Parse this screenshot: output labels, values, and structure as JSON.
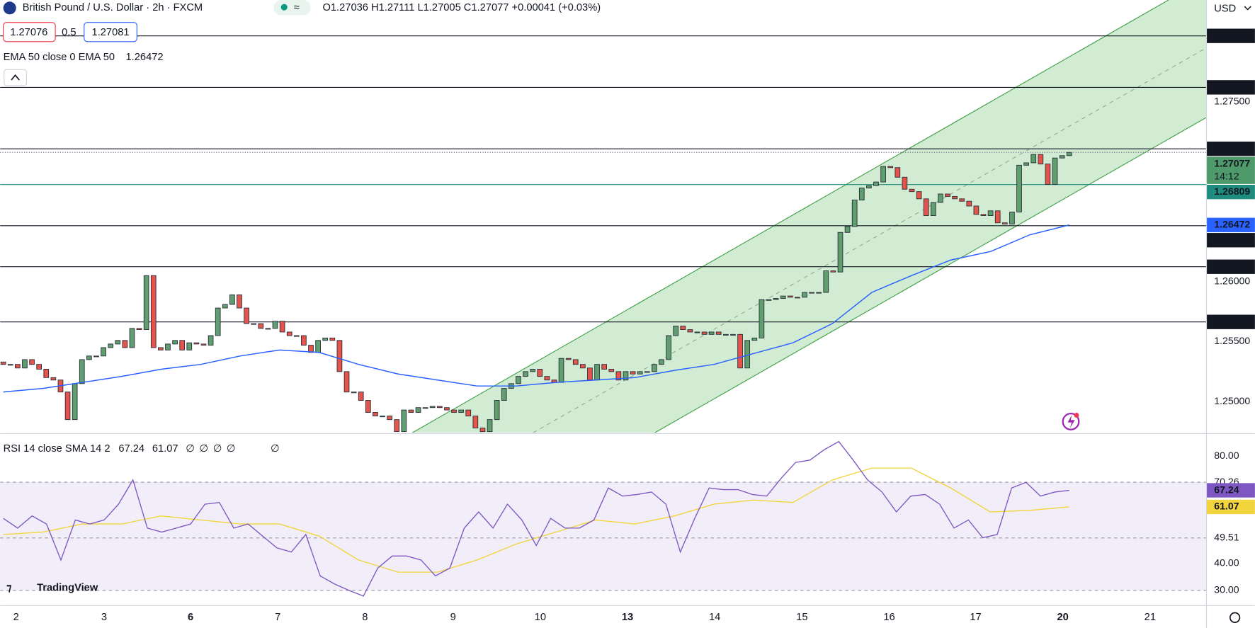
{
  "header": {
    "symbol": "British Pound / U.S. Dollar · 2h · FXCM",
    "ohlc": "O1.27036 H1.27111 L1.27005 C1.27077 +0.00041 (+0.03%)",
    "bid": "1.27076",
    "spread": "0.5",
    "ask": "1.27081",
    "currency": "USD",
    "logo": "TradingView"
  },
  "chart_data": {
    "type": "candlestick",
    "up_color": "#5f9e6f",
    "down_color": "#e5544b",
    "ylim": [
      1.2474,
      1.28347
    ],
    "yticks": [
      {
        "value": 1.25,
        "label": "1.25000"
      },
      {
        "value": 1.255,
        "label": "1.25500"
      },
      {
        "value": 1.26,
        "label": "1.26000"
      },
      {
        "value": 1.275,
        "label": "1.27500"
      }
    ],
    "open": 1.2533,
    "closes": [
      1.2531,
      1.2531,
      1.2528,
      1.2535,
      1.2531,
      1.2527,
      1.252,
      1.2518,
      1.2508,
      1.2485,
      1.2515,
      1.2535,
      1.2538,
      1.2538,
      1.2545,
      1.2548,
      1.2551,
      1.2545,
      1.2561,
      1.256,
      1.2605,
      1.2545,
      1.2543,
      1.2548,
      1.2551,
      1.2543,
      1.2549,
      1.2548,
      1.2547,
      1.2555,
      1.2578,
      1.2581,
      1.2589,
      1.2578,
      1.2565,
      1.2565,
      1.2561,
      1.2561,
      1.2567,
      1.2558,
      1.2555,
      1.2555,
      1.2547,
      1.2541,
      1.2551,
      1.2553,
      1.2551,
      1.2525,
      1.2508,
      1.2508,
      1.2501,
      1.2491,
      1.2488,
      1.2488,
      1.2485,
      1.2475,
      1.2493,
      1.2491,
      1.2495,
      1.2495,
      1.2496,
      1.2495,
      1.2493,
      1.2491,
      1.2493,
      1.2488,
      1.2478,
      1.2475,
      1.2485,
      1.2501,
      1.2511,
      1.2515,
      1.2521,
      1.2525,
      1.2527,
      1.2521,
      1.2518,
      1.2516,
      1.2536,
      1.2535,
      1.2531,
      1.2528,
      1.2518,
      1.2531,
      1.2527,
      1.2525,
      1.2518,
      1.2525,
      1.2523,
      1.2525,
      1.2525,
      1.2531,
      1.2535,
      1.2555,
      1.2563,
      1.256,
      1.2558,
      1.2558,
      1.2556,
      1.2558,
      1.2556,
      1.2556,
      1.2556,
      1.2528,
      1.2551,
      1.2553,
      1.2585,
      1.2585,
      1.2586,
      1.2588,
      1.2587,
      1.2587,
      1.2591,
      1.2591,
      1.2591,
      1.2609,
      1.2608,
      1.2641,
      1.2646,
      1.2668,
      1.2678,
      1.268,
      1.2683,
      1.2696,
      1.2695,
      1.2687,
      1.2677,
      1.2675,
      1.2669,
      1.2655,
      1.2666,
      1.2673,
      1.2671,
      1.2669,
      1.2667,
      1.2663,
      1.2656,
      1.2655,
      1.2659,
      1.2649,
      1.2648,
      1.2658,
      1.2697,
      1.2699,
      1.2706,
      1.2698,
      1.2681,
      1.2703,
      1.2705,
      1.27077
    ],
    "countdown": "14:12",
    "price_color": "#4f9a6a",
    "levels": [
      {
        "value": 1.28048,
        "color": "#131722"
      },
      {
        "value": 1.27619,
        "color": "#131722"
      },
      {
        "value": 1.27107,
        "color": "#131722"
      },
      {
        "value": 1.26809,
        "color": "#1e8c7e"
      },
      {
        "value": 1.26466,
        "color": "#131722"
      },
      {
        "value": 1.26124,
        "color": "#131722"
      },
      {
        "value": 1.25664,
        "color": "#131722"
      }
    ],
    "ema": {
      "label": "EMA 50 close 0 EMA 50",
      "color": "#2962ff",
      "values": [
        1.2508,
        1.2511,
        1.2516,
        1.2521,
        1.2527,
        1.2531,
        1.2538,
        1.2543,
        1.2541,
        1.2531,
        1.2523,
        1.2518,
        1.2513,
        1.2513,
        1.2516,
        1.2518,
        1.252,
        1.2526,
        1.2531,
        1.254,
        1.2549,
        1.2565,
        1.2591,
        1.2605,
        1.2618,
        1.2625,
        1.2639,
        1.26472
      ]
    },
    "rsi": {
      "label": "RSI 14 close SMA 14 2",
      "color": "#7e57c2",
      "sma_color": "#f2d43d",
      "extras": [
        "∅",
        "∅",
        "∅",
        "∅",
        "∅"
      ],
      "ylim": [
        24.35,
        88.04
      ],
      "yticks": [
        {
          "value": 80,
          "label": "80.00"
        },
        70.26,
        49.51,
        {
          "value": 40,
          "label": "40.00"
        },
        {
          "value": 30,
          "label": "30.00"
        }
      ],
      "values": [
        56.8,
        53.2,
        57.7,
        54.7,
        41.3,
        56.2,
        54.7,
        56.2,
        62.1,
        71.1,
        53.2,
        51.7,
        53.2,
        54.7,
        62.1,
        62.7,
        53.2,
        54.7,
        50.2,
        45.8,
        44.3,
        50.8,
        35.4,
        32.4,
        30.0,
        27.9,
        38.3,
        42.8,
        42.8,
        41.3,
        35.4,
        38.3,
        53.2,
        59.2,
        53.2,
        62.1,
        56.2,
        46.7,
        56.8,
        53.2,
        53.2,
        56.2,
        68.1,
        65.1,
        65.7,
        66.6,
        62.1,
        44.3,
        56.8,
        68.1,
        67.5,
        67.5,
        65.7,
        65.1,
        71.7,
        77.6,
        78.5,
        82.4,
        85.4,
        78.5,
        71.1,
        66.6,
        59.2,
        65.1,
        65.7,
        62.1,
        53.2,
        56.2,
        49.6,
        50.8,
        68.1,
        70.2,
        65.1,
        66.6,
        67.24
      ],
      "sma": [
        50.8,
        51.7,
        54.7,
        54.7,
        57.7,
        56.2,
        54.7,
        54.7,
        50.2,
        41.3,
        36.8,
        36.8,
        41.3,
        47.3,
        51.7,
        56.2,
        54.7,
        57.7,
        62.1,
        63.6,
        62.7,
        71.1,
        75.5,
        75.5,
        68.1,
        59.2,
        59.8,
        61.07
      ]
    },
    "dates": [
      "2",
      "3",
      "6",
      "7",
      "8",
      "9",
      "10",
      "13",
      "14",
      "15",
      "16",
      "17",
      "20",
      "21"
    ]
  }
}
